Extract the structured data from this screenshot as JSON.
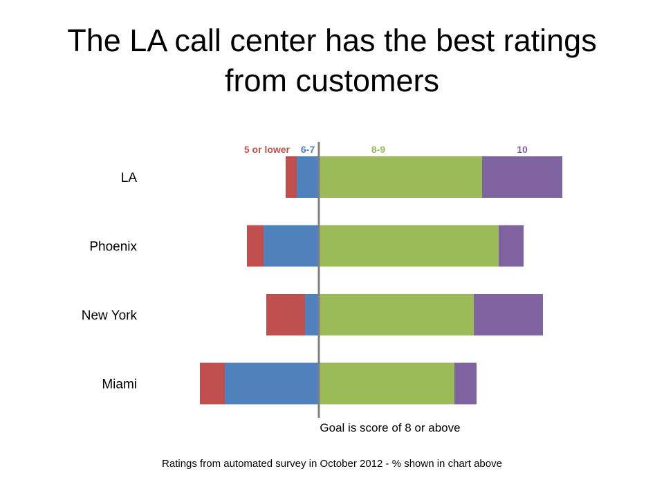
{
  "slide": {
    "title_line1": "The LA call center has the best ratings",
    "title_line2": "from customers",
    "footnote": "Ratings from automated survey in October 2012 - % shown in chart above"
  },
  "chart_data": {
    "type": "bar",
    "orientation": "horizontal",
    "stacked": "diverging",
    "title": "The LA call center has the best ratings from customers",
    "categories": [
      "LA",
      "Phoenix",
      "New York",
      "Miami"
    ],
    "baseline_label": "Goal is score of 8 or above",
    "xlabel": "",
    "ylabel": "",
    "unit": "%",
    "grid": false,
    "legend": "top (inline labels above bars)",
    "series": [
      {
        "name": "5 or lower",
        "side": "negative",
        "color": "#C0504D",
        "values": [
          4,
          6,
          14,
          9
        ]
      },
      {
        "name": "6-7",
        "side": "negative",
        "color": "#4F81BD",
        "values": [
          8,
          20,
          5,
          34
        ]
      },
      {
        "name": "8-9",
        "side": "positive",
        "color": "#9BBB59",
        "values": [
          59,
          65,
          56,
          49
        ]
      },
      {
        "name": "10",
        "side": "positive",
        "color": "#8064A2",
        "values": [
          29,
          9,
          25,
          8
        ]
      }
    ]
  }
}
